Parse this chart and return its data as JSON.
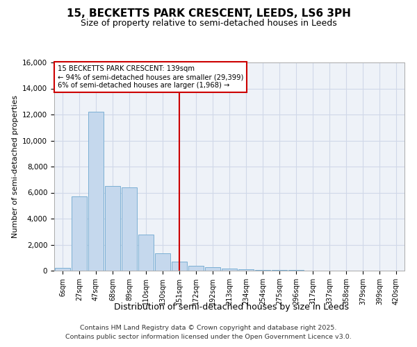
{
  "title": "15, BECKETTS PARK CRESCENT, LEEDS, LS6 3PH",
  "subtitle": "Size of property relative to semi-detached houses in Leeds",
  "xlabel": "Distribution of semi-detached houses by size in Leeds",
  "ylabel": "Number of semi-detached properties",
  "categories": [
    "6sqm",
    "27sqm",
    "47sqm",
    "68sqm",
    "89sqm",
    "110sqm",
    "130sqm",
    "151sqm",
    "172sqm",
    "192sqm",
    "213sqm",
    "234sqm",
    "254sqm",
    "275sqm",
    "296sqm",
    "317sqm",
    "337sqm",
    "358sqm",
    "379sqm",
    "399sqm",
    "420sqm"
  ],
  "values": [
    200,
    5700,
    12200,
    6500,
    6400,
    2800,
    1350,
    700,
    350,
    250,
    150,
    100,
    70,
    50,
    30,
    20,
    10,
    5,
    5,
    3,
    2
  ],
  "bar_color": "#c5d8ed",
  "bar_edge_color": "#7bafd4",
  "vline_color": "#cc0000",
  "annotation_box_color": "#cc0000",
  "annotation_text_line1": "15 BECKETTS PARK CRESCENT: 139sqm",
  "annotation_text_line2": "← 94% of semi-detached houses are smaller (29,399)",
  "annotation_text_line3": "6% of semi-detached houses are larger (1,968) →",
  "grid_color": "#d0d8e8",
  "background_color": "#eef2f8",
  "ylim": [
    0,
    16000
  ],
  "yticks": [
    0,
    2000,
    4000,
    6000,
    8000,
    10000,
    12000,
    14000,
    16000
  ],
  "vline_x": 7.0,
  "footer_line1": "Contains HM Land Registry data © Crown copyright and database right 2025.",
  "footer_line2": "Contains public sector information licensed under the Open Government Licence v3.0."
}
